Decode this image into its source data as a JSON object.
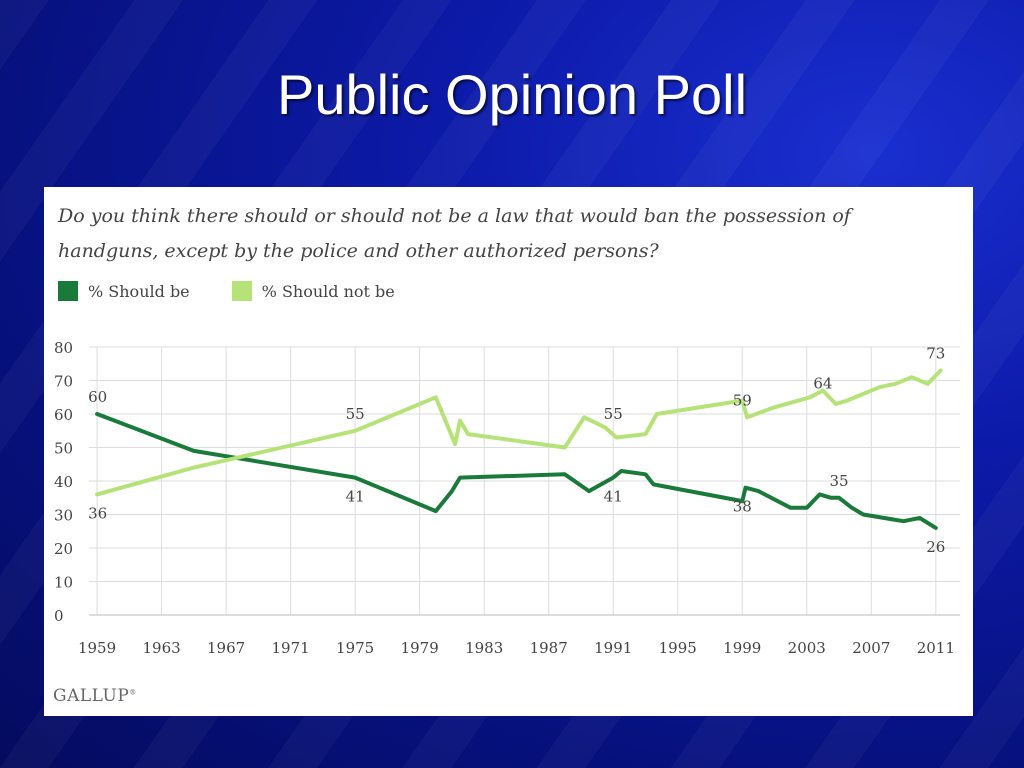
{
  "slide": {
    "title": "Public Opinion Poll"
  },
  "chart_data": {
    "type": "line",
    "question": "Do you think there should or should not be a law that would ban the possession of handguns, except by the police and other authorized persons?",
    "title": "",
    "xlabel": "",
    "ylabel": "",
    "xlim": [
      1958.5,
      2012.5
    ],
    "ylim": [
      0,
      80
    ],
    "yticks": [
      0,
      10,
      20,
      30,
      40,
      50,
      60,
      70,
      80
    ],
    "xticks": [
      1959,
      1963,
      1967,
      1971,
      1975,
      1979,
      1983,
      1987,
      1991,
      1995,
      1999,
      2003,
      2007,
      2011
    ],
    "grid": true,
    "legend_position": "top-left",
    "series": [
      {
        "name": "% Should be",
        "color": "#1a7a3a",
        "points": [
          [
            1959,
            60
          ],
          [
            1965,
            49
          ],
          [
            1975,
            41
          ],
          [
            1980,
            31
          ],
          [
            1981,
            37
          ],
          [
            1981.5,
            41
          ],
          [
            1988,
            42
          ],
          [
            1989.5,
            37
          ],
          [
            1991,
            41
          ],
          [
            1991.5,
            43
          ],
          [
            1993,
            42
          ],
          [
            1993.5,
            39
          ],
          [
            1999,
            34
          ],
          [
            1999.2,
            38
          ],
          [
            2000,
            37
          ],
          [
            2002,
            32
          ],
          [
            2003,
            32
          ],
          [
            2003.8,
            36
          ],
          [
            2004.5,
            35
          ],
          [
            2005,
            35
          ],
          [
            2005.8,
            32
          ],
          [
            2006.5,
            30
          ],
          [
            2009,
            28
          ],
          [
            2010,
            29
          ],
          [
            2011,
            26
          ]
        ]
      },
      {
        "name": "% Should not be",
        "color": "#b5e378",
        "points": [
          [
            1959,
            36
          ],
          [
            1965,
            44
          ],
          [
            1975,
            55
          ],
          [
            1980,
            65
          ],
          [
            1981.2,
            51
          ],
          [
            1981.5,
            58
          ],
          [
            1982,
            54
          ],
          [
            1988,
            50
          ],
          [
            1989.2,
            59
          ],
          [
            1990.5,
            56
          ],
          [
            1991.2,
            53
          ],
          [
            1993,
            54
          ],
          [
            1993.7,
            60
          ],
          [
            1999,
            64
          ],
          [
            1999.3,
            59
          ],
          [
            2001,
            62
          ],
          [
            2003.2,
            65
          ],
          [
            2004,
            67
          ],
          [
            2004.8,
            63
          ],
          [
            2005.5,
            64
          ],
          [
            2007.5,
            68
          ],
          [
            2008.5,
            69
          ],
          [
            2009.5,
            71
          ],
          [
            2010.5,
            69
          ],
          [
            2011.3,
            73
          ]
        ]
      }
    ],
    "data_labels": [
      {
        "text": "60",
        "x": 1959,
        "y": 60,
        "series": 0
      },
      {
        "text": "36",
        "x": 1959,
        "y": 36,
        "series": 1
      },
      {
        "text": "55",
        "x": 1975,
        "y": 55,
        "series": 1
      },
      {
        "text": "41",
        "x": 1975,
        "y": 41,
        "series": 0
      },
      {
        "text": "55",
        "x": 1991,
        "y": 55,
        "series": 1
      },
      {
        "text": "41",
        "x": 1991,
        "y": 41,
        "series": 0
      },
      {
        "text": "59",
        "x": 1999,
        "y": 59,
        "series": 1
      },
      {
        "text": "38",
        "x": 1999,
        "y": 38,
        "series": 0
      },
      {
        "text": "64",
        "x": 2004,
        "y": 64,
        "series": 1
      },
      {
        "text": "35",
        "x": 2005,
        "y": 35,
        "series": 0
      },
      {
        "text": "73",
        "x": 2011,
        "y": 73,
        "series": 1
      },
      {
        "text": "26",
        "x": 2011,
        "y": 26,
        "series": 0
      }
    ]
  },
  "footer": {
    "logo_text": "GALLUP",
    "logo_mark": "®"
  }
}
